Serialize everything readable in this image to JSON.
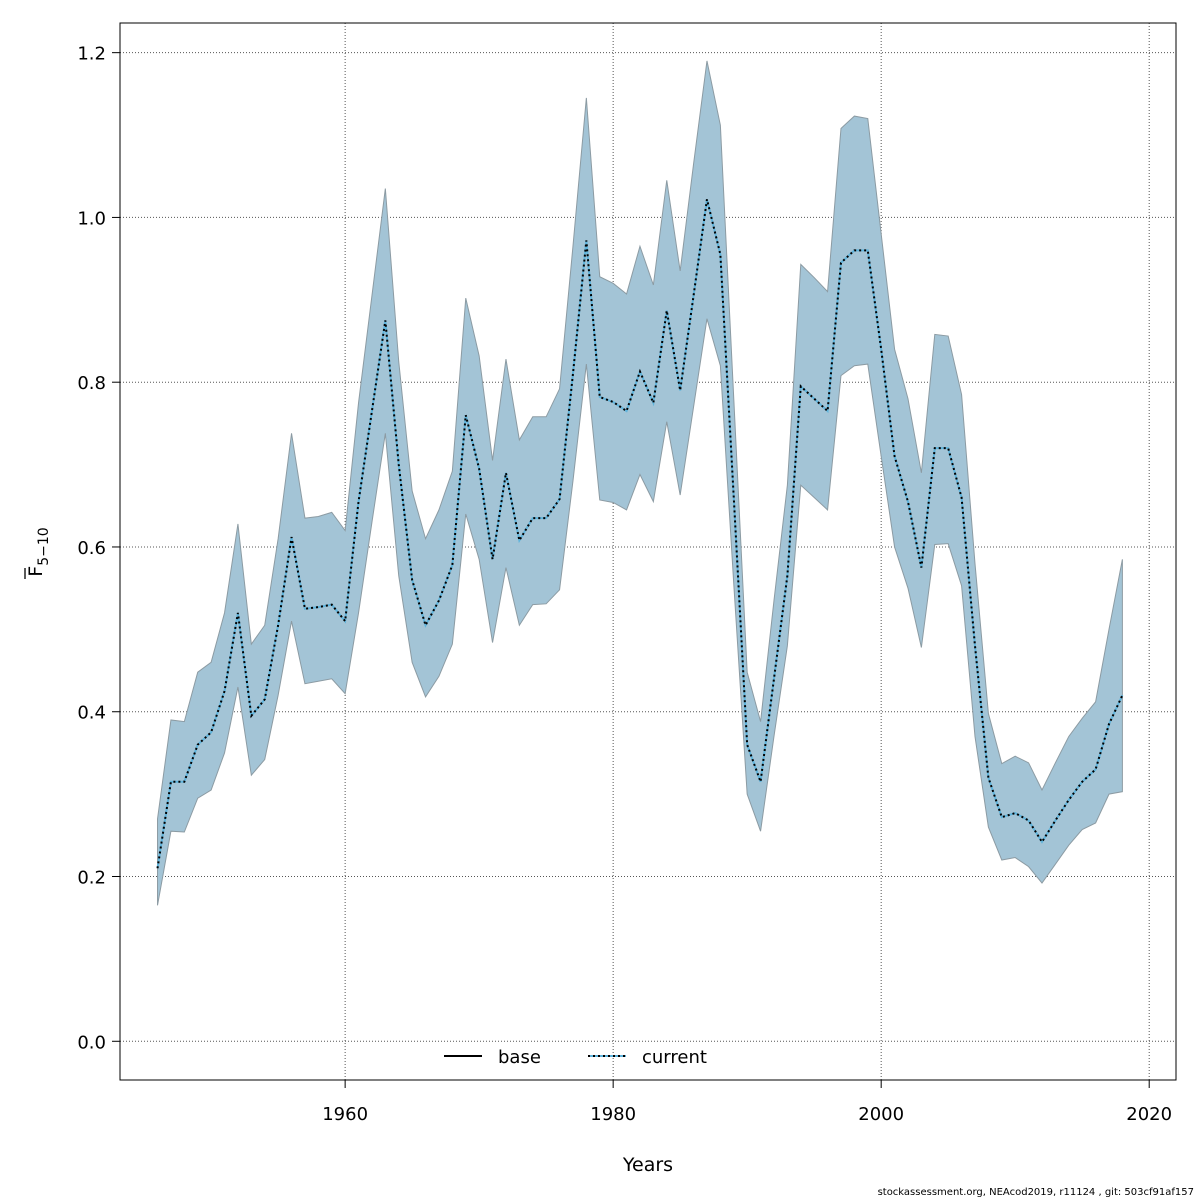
{
  "chart_data": {
    "type": "area",
    "xlabel": "Years",
    "ylabel_main": "F",
    "ylabel_sub": "5−10",
    "xlim": [
      1943.2,
      2022
    ],
    "ylim": [
      -0.047,
      1.236
    ],
    "xticks": [
      1960,
      1980,
      2000,
      2020
    ],
    "yticks": [
      0.0,
      0.2,
      0.4,
      0.6,
      0.8,
      1.0,
      1.2
    ],
    "ytick_labels": [
      "0.0",
      "0.2",
      "0.4",
      "0.6",
      "0.8",
      "1.0",
      "1.2"
    ],
    "grid": true,
    "legend": {
      "placement": "bottom",
      "entries": [
        {
          "label": "base",
          "style": "solid"
        },
        {
          "label": "current",
          "style": "dotted"
        }
      ]
    },
    "colors": {
      "band": "#a3c4d6",
      "band_edge": "#8c9ba3",
      "line": "#000000",
      "line_under": "#5fb4dc"
    },
    "x": [
      1946,
      1947,
      1948,
      1949,
      1950,
      1951,
      1952,
      1953,
      1954,
      1955,
      1956,
      1957,
      1958,
      1959,
      1960,
      1961,
      1962,
      1963,
      1964,
      1965,
      1966,
      1967,
      1968,
      1969,
      1970,
      1971,
      1972,
      1973,
      1974,
      1975,
      1976,
      1977,
      1978,
      1979,
      1980,
      1981,
      1982,
      1983,
      1984,
      1985,
      1986,
      1987,
      1988,
      1989,
      1990,
      1991,
      1992,
      1993,
      1994,
      1995,
      1996,
      1997,
      1998,
      1999,
      2000,
      2001,
      2002,
      2003,
      2004,
      2005,
      2006,
      2007,
      2008,
      2009,
      2010,
      2011,
      2012,
      2013,
      2014,
      2015,
      2016,
      2017,
      2018
    ],
    "mean": [
      0.21,
      0.315,
      0.315,
      0.36,
      0.375,
      0.425,
      0.52,
      0.395,
      0.415,
      0.505,
      0.612,
      0.525,
      0.527,
      0.53,
      0.51,
      0.655,
      0.765,
      0.875,
      0.7,
      0.56,
      0.505,
      0.535,
      0.578,
      0.76,
      0.695,
      0.585,
      0.69,
      0.608,
      0.635,
      0.635,
      0.658,
      0.81,
      0.972,
      0.782,
      0.776,
      0.765,
      0.813,
      0.775,
      0.887,
      0.79,
      0.905,
      1.022,
      0.955,
      0.66,
      0.36,
      0.315,
      0.44,
      0.565,
      0.795,
      0.78,
      0.765,
      0.945,
      0.96,
      0.96,
      0.84,
      0.71,
      0.655,
      0.575,
      0.72,
      0.72,
      0.66,
      0.48,
      0.32,
      0.272,
      0.277,
      0.268,
      0.242,
      0.268,
      0.293,
      0.315,
      0.33,
      0.385,
      0.42
    ],
    "upper": [
      0.27,
      0.39,
      0.388,
      0.448,
      0.46,
      0.52,
      0.628,
      0.482,
      0.505,
      0.61,
      0.738,
      0.635,
      0.637,
      0.642,
      0.62,
      0.775,
      0.905,
      1.035,
      0.825,
      0.668,
      0.61,
      0.645,
      0.692,
      0.902,
      0.832,
      0.705,
      0.828,
      0.73,
      0.758,
      0.758,
      0.792,
      0.965,
      1.145,
      0.928,
      0.92,
      0.907,
      0.965,
      0.918,
      1.045,
      0.935,
      1.065,
      1.19,
      1.112,
      0.78,
      0.448,
      0.388,
      0.535,
      0.675,
      0.943,
      0.927,
      0.91,
      1.108,
      1.123,
      1.12,
      0.98,
      0.84,
      0.78,
      0.69,
      0.858,
      0.856,
      0.785,
      0.58,
      0.398,
      0.337,
      0.346,
      0.338,
      0.305,
      0.338,
      0.37,
      0.392,
      0.412,
      0.5,
      0.585
    ],
    "lower": [
      0.165,
      0.255,
      0.254,
      0.295,
      0.305,
      0.35,
      0.43,
      0.323,
      0.342,
      0.42,
      0.51,
      0.434,
      0.437,
      0.44,
      0.422,
      0.52,
      0.63,
      0.738,
      0.565,
      0.46,
      0.418,
      0.443,
      0.482,
      0.64,
      0.585,
      0.484,
      0.575,
      0.505,
      0.53,
      0.531,
      0.548,
      0.68,
      0.822,
      0.657,
      0.654,
      0.645,
      0.688,
      0.655,
      0.752,
      0.663,
      0.77,
      0.877,
      0.82,
      0.555,
      0.3,
      0.255,
      0.37,
      0.48,
      0.675,
      0.66,
      0.645,
      0.808,
      0.82,
      0.822,
      0.71,
      0.6,
      0.55,
      0.478,
      0.603,
      0.604,
      0.553,
      0.37,
      0.26,
      0.22,
      0.223,
      0.212,
      0.192,
      0.215,
      0.238,
      0.257,
      0.265,
      0.3,
      0.303
    ]
  },
  "footer": "stockassessment.org, NEAcod2019, r11124 , git: 503cf91af157"
}
